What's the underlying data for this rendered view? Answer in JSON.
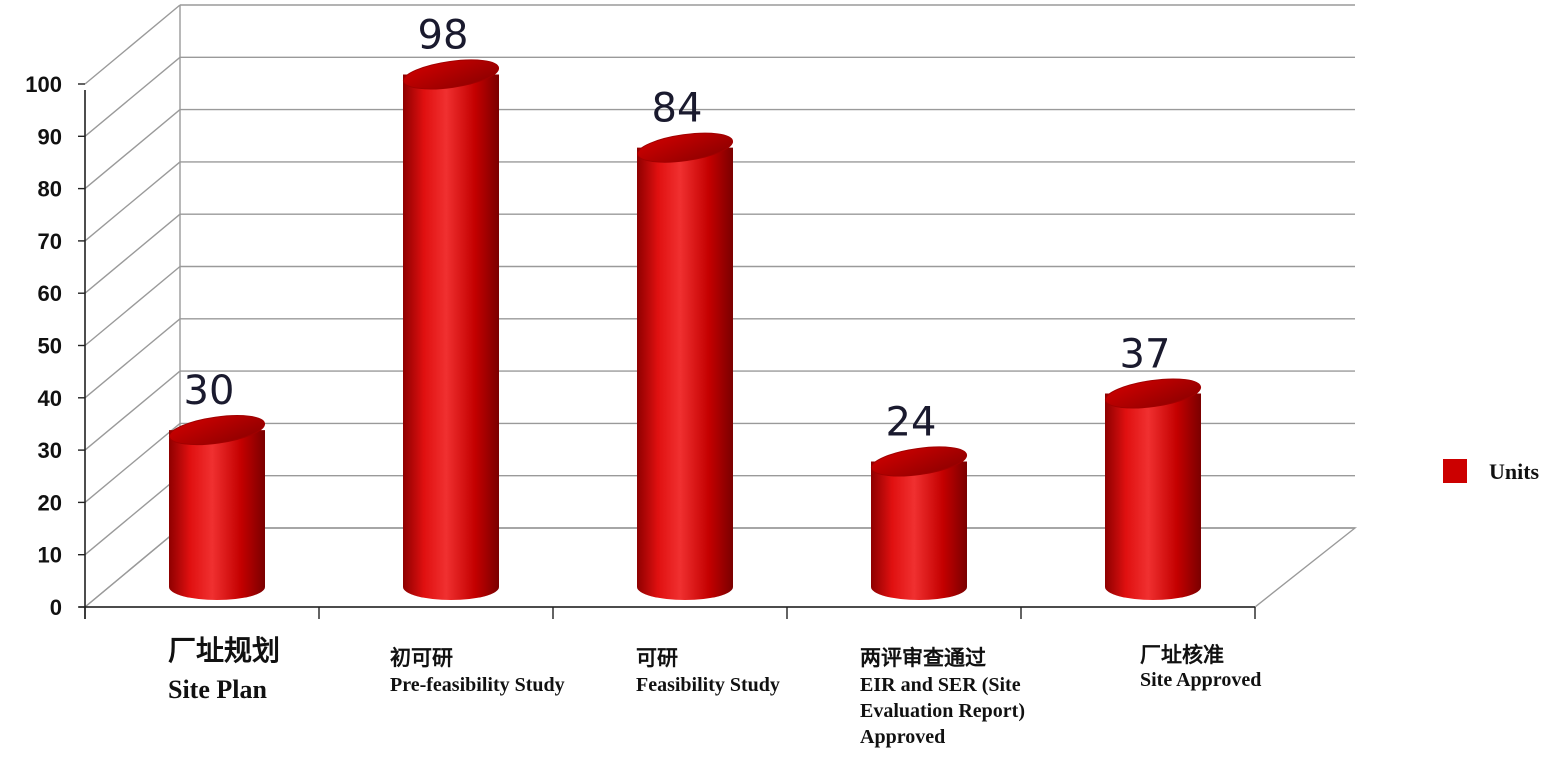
{
  "chart_data": {
    "type": "bar",
    "style": "3d-cylinder",
    "categories": [
      {
        "zh": "厂址规划",
        "en": [
          "Site Plan"
        ]
      },
      {
        "zh": "初可研",
        "en": [
          "Pre-feasibility Study"
        ]
      },
      {
        "zh": "可研",
        "en": [
          "Feasibility Study"
        ]
      },
      {
        "zh": "两评审查通过",
        "en": [
          "EIR and SER (Site",
          "Evaluation Report)",
          "Approved"
        ]
      },
      {
        "zh": "厂址核准",
        "en": [
          "Site Approved"
        ]
      }
    ],
    "series": [
      {
        "name": "Units",
        "values": [
          30,
          98,
          84,
          24,
          37
        ],
        "color": "#cc0000"
      }
    ],
    "value_labels": [
      "30",
      "98",
      "84",
      "24",
      "37"
    ],
    "yticks": [
      "0",
      "10",
      "20",
      "30",
      "40",
      "50",
      "60",
      "70",
      "80",
      "90",
      "100"
    ],
    "ylim": [
      0,
      100
    ],
    "grid": true,
    "legend": {
      "position": "right",
      "label": "Units"
    }
  }
}
